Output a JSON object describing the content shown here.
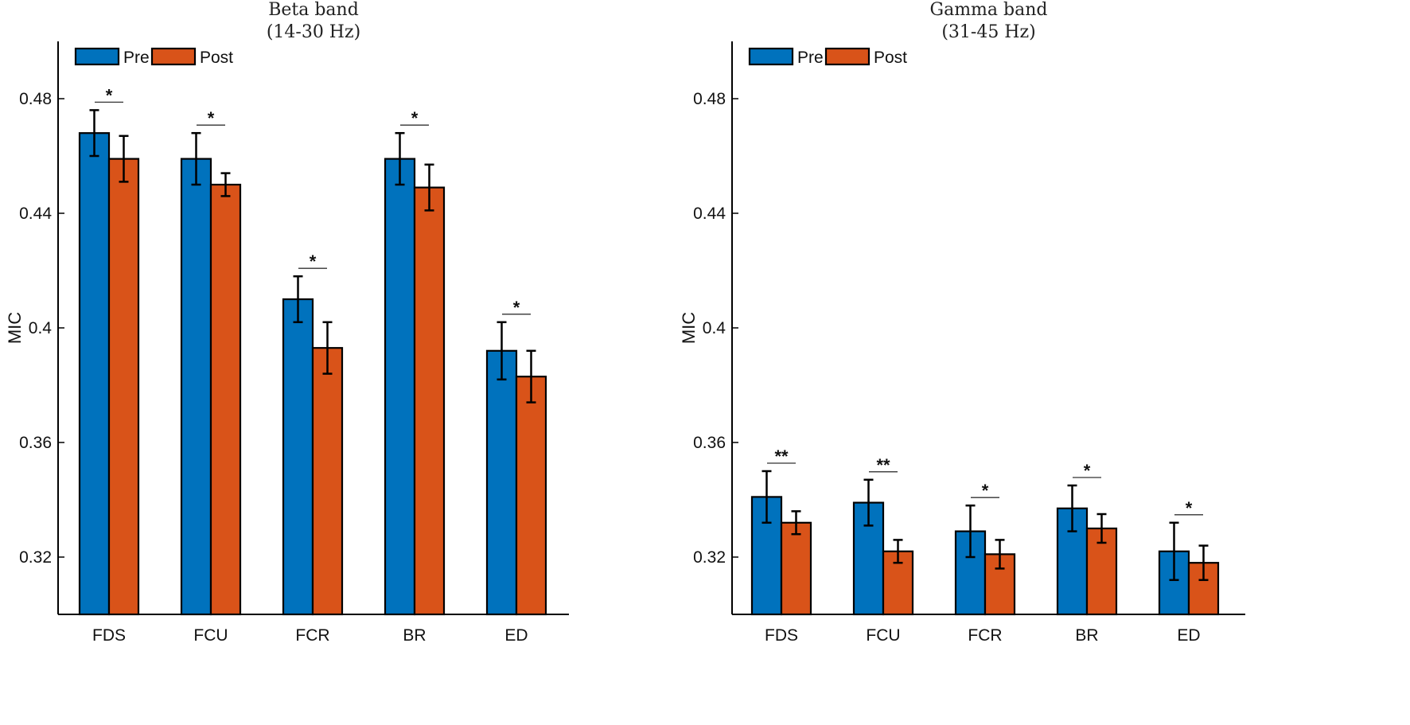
{
  "colors": {
    "pre": "#0072BD",
    "post": "#D95319",
    "axis": "#000000"
  },
  "chart_data": [
    {
      "type": "bar",
      "title_line1": "Beta band",
      "title_line2": "(14-30 Hz)",
      "ylabel": "MIC",
      "ylim": [
        0.3,
        0.5
      ],
      "yticks": [
        0.32,
        0.36,
        0.4,
        0.44,
        0.48
      ],
      "ytick_labels": [
        "0.32",
        "0.36",
        "0.4",
        "0.44",
        "0.48"
      ],
      "categories": [
        "FDS",
        "FCU",
        "FCR",
        "BR",
        "ED"
      ],
      "legend": [
        "Pre",
        "Post"
      ],
      "series": [
        {
          "name": "Pre",
          "values": [
            0.468,
            0.459,
            0.41,
            0.459,
            0.392
          ],
          "errors": [
            0.008,
            0.009,
            0.008,
            0.009,
            0.01
          ]
        },
        {
          "name": "Post",
          "values": [
            0.459,
            0.45,
            0.393,
            0.449,
            0.383
          ],
          "errors": [
            0.008,
            0.004,
            0.009,
            0.008,
            0.009
          ]
        }
      ],
      "significance": [
        "*",
        "*",
        "*",
        "*",
        "*"
      ]
    },
    {
      "type": "bar",
      "title_line1": "Gamma band",
      "title_line2": "(31-45 Hz)",
      "ylabel": "MIC",
      "ylim": [
        0.3,
        0.5
      ],
      "yticks": [
        0.32,
        0.36,
        0.4,
        0.44,
        0.48
      ],
      "ytick_labels": [
        "0.32",
        "0.36",
        "0.4",
        "0.44",
        "0.48"
      ],
      "categories": [
        "FDS",
        "FCU",
        "FCR",
        "BR",
        "ED"
      ],
      "legend": [
        "Pre",
        "Post"
      ],
      "series": [
        {
          "name": "Pre",
          "values": [
            0.341,
            0.339,
            0.329,
            0.337,
            0.322
          ],
          "errors": [
            0.009,
            0.008,
            0.009,
            0.008,
            0.01
          ]
        },
        {
          "name": "Post",
          "values": [
            0.332,
            0.322,
            0.321,
            0.33,
            0.318
          ],
          "errors": [
            0.004,
            0.004,
            0.005,
            0.005,
            0.006
          ]
        }
      ],
      "significance": [
        "**",
        "**",
        "*",
        "*",
        "*"
      ]
    }
  ]
}
